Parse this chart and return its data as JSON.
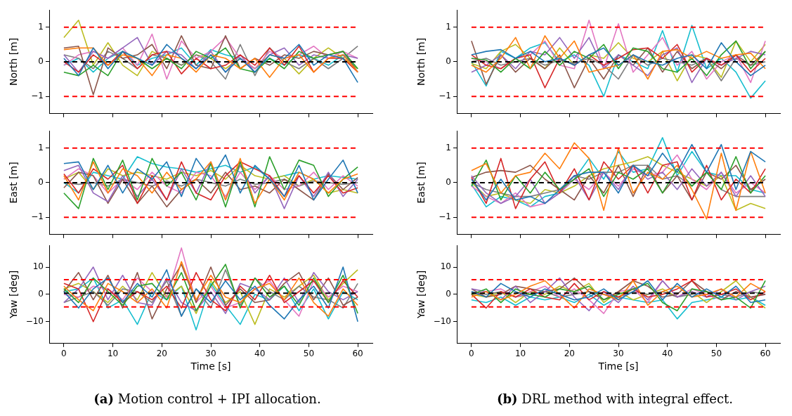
{
  "chart_data": [
    {
      "type": "line",
      "ylabel": "North [m]",
      "tick_labels": "y",
      "x": [
        0,
        3,
        6,
        9,
        12,
        15,
        18,
        21,
        24,
        27,
        30,
        33,
        36,
        39,
        42,
        45,
        48,
        51,
        54,
        57,
        60
      ],
      "xlim": [
        -3,
        63
      ],
      "xticks": [
        0,
        10,
        20,
        30,
        40,
        50,
        60
      ],
      "ylim": [
        -1.5,
        1.5
      ],
      "yticks": [
        -1,
        0,
        1
      ],
      "ref_lines": [
        {
          "axis": "y",
          "value": 1,
          "color": "#ff0000",
          "line_style": "dashed"
        },
        {
          "axis": "y",
          "value": -1,
          "color": "#ff0000",
          "line_style": "dashed"
        },
        {
          "axis": "y",
          "value": 0,
          "color": "#000000",
          "line_style": "dashed"
        }
      ],
      "series": [
        {
          "color": "#1f77b4",
          "values": [
            0.1,
            -0.4,
            0.4,
            -0.2,
            0.3,
            0.1,
            -0.1,
            0.5,
            0.1,
            -0.2,
            0.2,
            -0.3,
            0.1,
            -0.3,
            0.2,
            0.1,
            0.5,
            -0.1,
            0.2,
            0.1,
            -0.6
          ]
        },
        {
          "color": "#ff7f0e",
          "values": [
            0.35,
            0.4,
            0.4,
            -0.1,
            0.2,
            0.1,
            -0.4,
            0.2,
            0.1,
            -0.3,
            0.2,
            0.1,
            -0.2,
            0.1,
            -0.45,
            0.1,
            0.2,
            -0.3,
            0.1,
            0.2,
            -0.3
          ]
        },
        {
          "color": "#2ca02c",
          "values": [
            -0.3,
            -0.4,
            -0.1,
            -0.4,
            0.3,
            0.1,
            -0.2,
            0.1,
            -0.2,
            0.3,
            0.1,
            0.4,
            -0.2,
            -0.3,
            0.1,
            -0.2,
            0.3,
            0.1,
            0.2,
            0.3,
            -0.2
          ]
        },
        {
          "color": "#d62728",
          "values": [
            0,
            -0.3,
            0.2,
            -0.1,
            0.3,
            -0.2,
            0.2,
            0.3,
            -0.35,
            0.1,
            -0.2,
            -0.1,
            0.2,
            -0.1,
            0.4,
            -0.1,
            0.45,
            -0.3,
            0.1,
            0.1,
            -0.3
          ]
        },
        {
          "color": "#9467bd",
          "values": [
            0.2,
            -0.3,
            0.3,
            0.1,
            0.4,
            0.7,
            -0.1,
            0.3,
            0.2,
            -0.2,
            0.3,
            -0.3,
            0.2,
            -0.3,
            0.2,
            0.4,
            -0.1,
            0.2,
            0.1,
            0.2,
            0.1
          ]
        },
        {
          "color": "#8c564b",
          "values": [
            0.4,
            0.45,
            -0.95,
            0.4,
            0.1,
            0.2,
            0.5,
            -0.2,
            0.75,
            -0.1,
            -0.2,
            0.75,
            -0.2,
            0.1,
            -0.1,
            0.2,
            0.1,
            0.3,
            0.2,
            0.3,
            -0.3
          ]
        },
        {
          "color": "#e377c2",
          "values": [
            -0.1,
            0.2,
            0.3,
            0.1,
            0.4,
            -0.1,
            0.8,
            -0.5,
            0.6,
            0.1,
            0.3,
            0.7,
            0.1,
            -0.2,
            0.3,
            0.1,
            0.2,
            0.45,
            0.1,
            0.3,
            0.1
          ]
        },
        {
          "color": "#7f7f7f",
          "values": [
            0.2,
            0.1,
            -0.2,
            0.3,
            0.1,
            -0.2,
            0.2,
            0.1,
            -0.1,
            0.2,
            0,
            -0.5,
            0.5,
            -0.4,
            0.4,
            0,
            -0.2,
            0.1,
            -0.2,
            0.1,
            0.45
          ]
        },
        {
          "color": "#bcbd22",
          "values": [
            0.7,
            1.2,
            -0.1,
            0.55,
            -0.1,
            -0.4,
            0.3,
            0.1,
            -0.1,
            0.2,
            0.1,
            -0.2,
            0.1,
            -0.2,
            0.2,
            0.1,
            -0.35,
            0.1,
            0.4,
            0.1,
            -0.2
          ]
        },
        {
          "color": "#17becf",
          "values": [
            -0.1,
            0.1,
            -0.3,
            0.1,
            0.3,
            -0.1,
            0.1,
            0.2,
            0.4,
            -0.1,
            0.35,
            0.2,
            0.1,
            -0.2,
            0.1,
            -0.1,
            0.2,
            0.1,
            -0.1,
            0.2,
            -0.2
          ]
        }
      ]
    },
    {
      "type": "line",
      "ylabel": "North [m]",
      "tick_labels": "y",
      "x": [
        0,
        3,
        6,
        9,
        12,
        15,
        18,
        21,
        24,
        27,
        30,
        33,
        36,
        39,
        42,
        45,
        48,
        51,
        54,
        57,
        60
      ],
      "xlim": [
        -3,
        63
      ],
      "xticks": [
        0,
        10,
        20,
        30,
        40,
        50,
        60
      ],
      "ylim": [
        -1.5,
        1.5
      ],
      "yticks": [
        -1,
        0,
        1
      ],
      "ref_lines": [
        {
          "axis": "y",
          "value": 1,
          "color": "#ff0000",
          "line_style": "dashed"
        },
        {
          "axis": "y",
          "value": -1,
          "color": "#ff0000",
          "line_style": "dashed"
        },
        {
          "axis": "y",
          "value": 0,
          "color": "#000000",
          "line_style": "dashed"
        }
      ],
      "series": [
        {
          "color": "#1f77b4",
          "values": [
            0.2,
            0.3,
            0.35,
            0.1,
            0.3,
            0,
            0.1,
            -0.1,
            0.2,
            0.4,
            -0.1,
            0.2,
            0,
            -0.1,
            0.1,
            0.2,
            -0.2,
            0.55,
            0,
            -0.4,
            -0.1
          ]
        },
        {
          "color": "#ff7f0e",
          "values": [
            -0.1,
            -0.3,
            0.1,
            0.7,
            -0.2,
            0.75,
            0.1,
            0.6,
            -0.3,
            -0.2,
            -0.1,
            0.2,
            -0.5,
            0.3,
            0.35,
            0.1,
            0.3,
            0.1,
            0.2,
            0.25,
            -0.2
          ]
        },
        {
          "color": "#2ca02c",
          "values": [
            0.1,
            0.05,
            -0.3,
            0.1,
            -0.2,
            0.3,
            -0.1,
            0.3,
            0.1,
            0.5,
            -0.2,
            0.4,
            0.3,
            -0.2,
            -0.3,
            0.1,
            -0.4,
            0.2,
            0.6,
            -0.2,
            0.3
          ]
        },
        {
          "color": "#d62728",
          "values": [
            0.2,
            -0.1,
            -0.2,
            0.1,
            0.2,
            -0.75,
            0.1,
            -0.1,
            0.2,
            -0.1,
            0.1,
            0.35,
            0.4,
            0.1,
            0.5,
            -0.3,
            0.1,
            -0.1,
            0.2,
            -0.3,
            0.1
          ]
        },
        {
          "color": "#9467bd",
          "values": [
            -0.3,
            -0.1,
            0.2,
            -0.2,
            0.3,
            0.2,
            0.7,
            0.1,
            0.7,
            -0.2,
            0.2,
            -0.1,
            -0.4,
            0.2,
            0.4,
            -0.6,
            0.1,
            -0.1,
            0.1,
            0.3,
            0.2
          ]
        },
        {
          "color": "#8c564b",
          "values": [
            0.6,
            -0.65,
            0.2,
            -0.3,
            0.1,
            -0.2,
            0.2,
            -0.75,
            0.1,
            -0.5,
            0.2,
            -0.1,
            0.4,
            -0.3,
            0.3,
            -0.2,
            0.1,
            -0.2,
            0.2,
            -0.1,
            0.3
          ]
        },
        {
          "color": "#e377c2",
          "values": [
            0.1,
            0,
            -0.2,
            0.1,
            0.2,
            0.6,
            -0.1,
            -0.2,
            1.2,
            -0.2,
            1.1,
            -0.3,
            0.2,
            0.7,
            -0.1,
            0.3,
            -0.5,
            0,
            0.2,
            -0.6,
            0.6
          ]
        },
        {
          "color": "#7f7f7f",
          "values": [
            0,
            0.1,
            -0.1,
            0,
            0.1,
            -0.1,
            0.05,
            -0.05,
            0.1,
            -0.1,
            -0.5,
            0.2,
            -0.1,
            0.1,
            0,
            -0.1,
            0.1,
            -0.55,
            0.1,
            -0.1,
            0
          ]
        },
        {
          "color": "#bcbd22",
          "values": [
            -0.05,
            -0.2,
            0.3,
            0.5,
            0.1,
            -0.2,
            0.4,
            -0.1,
            0.2,
            0.1,
            0.55,
            0.1,
            0,
            0.3,
            -0.55,
            0.2,
            0.1,
            -0.45,
            0.6,
            0,
            0.5
          ]
        },
        {
          "color": "#17becf",
          "values": [
            0,
            -0.7,
            0.3,
            0.1,
            0.4,
            0.55,
            0,
            0.2,
            -0.1,
            -1,
            0.2,
            0,
            -0.2,
            0.9,
            -0.3,
            1.05,
            -0.2,
            0.1,
            -0.3,
            -1.05,
            -0.55
          ]
        }
      ]
    },
    {
      "type": "line",
      "ylabel": "East [m]",
      "tick_labels": "y",
      "x": [
        0,
        3,
        6,
        9,
        12,
        15,
        18,
        21,
        24,
        27,
        30,
        33,
        36,
        39,
        42,
        45,
        48,
        51,
        54,
        57,
        60
      ],
      "xlim": [
        -3,
        63
      ],
      "xticks": [
        0,
        10,
        20,
        30,
        40,
        50,
        60
      ],
      "ylim": [
        -1.5,
        1.5
      ],
      "yticks": [
        -1,
        0,
        1
      ],
      "ref_lines": [
        {
          "axis": "y",
          "value": 1,
          "color": "#ff0000",
          "line_style": "dashed"
        },
        {
          "axis": "y",
          "value": -1,
          "color": "#ff0000",
          "line_style": "dashed"
        },
        {
          "axis": "y",
          "value": 0,
          "color": "#000000",
          "line_style": "dashed"
        }
      ],
      "series": [
        {
          "color": "#1f77b4",
          "values": [
            0.55,
            0.6,
            -0.2,
            0.5,
            -0.3,
            0.4,
            0.1,
            0.6,
            -0.4,
            0.7,
            0.1,
            0.8,
            -0.3,
            0.5,
            0.1,
            -0.4,
            0.5,
            -0.5,
            0.1,
            0.65,
            -0.3
          ]
        },
        {
          "color": "#ff7f0e",
          "values": [
            0.2,
            -0.5,
            0.6,
            -0.3,
            0.4,
            0.2,
            -0.3,
            0.3,
            -0.2,
            0.1,
            0.6,
            -0.5,
            0.7,
            -0.6,
            0.1,
            -0.5,
            0.3,
            0.1,
            -0.3,
            0.1,
            0.25
          ]
        },
        {
          "color": "#2ca02c",
          "values": [
            -0.3,
            -0.75,
            0.7,
            -0.2,
            0.65,
            -0.5,
            0.7,
            -0.1,
            0.3,
            -0.5,
            0.55,
            -0.7,
            0.6,
            -0.7,
            0.75,
            -0.2,
            0.65,
            0.5,
            -0.4,
            0.1,
            0.45
          ]
        },
        {
          "color": "#d62728",
          "values": [
            0.25,
            -0.3,
            0.4,
            0.1,
            0.5,
            -0.6,
            0.2,
            -0.5,
            0.6,
            -0.3,
            -0.5,
            0.2,
            0.6,
            0.4,
            0.2,
            -0.4,
            0.2,
            -0.3,
            0.2,
            -0.3,
            -0.15
          ]
        },
        {
          "color": "#9467bd",
          "values": [
            0.35,
            0.5,
            -0.3,
            -0.55,
            0.2,
            -0.4,
            0.1,
            -0.5,
            0.4,
            -0.3,
            0.6,
            -0.5,
            0.5,
            -0.3,
            0.2,
            -0.75,
            0.2,
            -0.4,
            0.3,
            -0.4,
            0.1
          ]
        },
        {
          "color": "#8c564b",
          "values": [
            -0.15,
            0.3,
            0.2,
            -0.6,
            0.1,
            -0.6,
            -0.1,
            -0.7,
            -0.2,
            0.1,
            -0.3,
            0.3,
            -0.2,
            -0.1,
            -0.3,
            0.1,
            -0.2,
            -0.5,
            0.25,
            -0.2,
            0.15
          ]
        },
        {
          "color": "#e377c2",
          "values": [
            0.1,
            0.4,
            0.2,
            -0.3,
            0.1,
            -0.2,
            0.3,
            -0.1,
            -0.3,
            0.3,
            0.2,
            -0.4,
            0.3,
            -0.2,
            0.2,
            -0.2,
            -0.1,
            0.3,
            -0.2,
            0.2,
            -0.1
          ]
        },
        {
          "color": "#7f7f7f",
          "values": [
            0,
            -0.05,
            0,
            -0.1,
            0.1,
            0,
            -0.1,
            0.05,
            -0.1,
            0.1,
            0,
            -0.1,
            0.1,
            -0.05,
            0,
            0.1,
            -0.1,
            0.05,
            0,
            -0.05,
            0
          ]
        },
        {
          "color": "#bcbd22",
          "values": [
            0.1,
            0.3,
            -0.2,
            0.4,
            0.2,
            0.3,
            0.2,
            0.1,
            0.3,
            0.2,
            0.35,
            0.1,
            0.5,
            0.2,
            0.1,
            0.2,
            -0.1,
            0.1,
            -0.3,
            -0.2,
            -0.3
          ]
        },
        {
          "color": "#17becf",
          "values": [
            0,
            -0.3,
            0.3,
            0.2,
            0.1,
            0.75,
            0.55,
            0.45,
            0.4,
            0.3,
            0.4,
            0.5,
            0.3,
            0.45,
            0.1,
            0.2,
            0.3,
            0.1,
            0.2,
            0.15,
            0.1
          ]
        }
      ]
    },
    {
      "type": "line",
      "ylabel": "East [m]",
      "tick_labels": "y",
      "x": [
        0,
        3,
        6,
        9,
        12,
        15,
        18,
        21,
        24,
        27,
        30,
        33,
        36,
        39,
        42,
        45,
        48,
        51,
        54,
        57,
        60
      ],
      "xlim": [
        -3,
        63
      ],
      "xticks": [
        0,
        10,
        20,
        30,
        40,
        50,
        60
      ],
      "ylim": [
        -1.5,
        1.5
      ],
      "yticks": [
        -1,
        0,
        1
      ],
      "ref_lines": [
        {
          "axis": "y",
          "value": 1,
          "color": "#ff0000",
          "line_style": "dashed"
        },
        {
          "axis": "y",
          "value": -1,
          "color": "#ff0000",
          "line_style": "dashed"
        },
        {
          "axis": "y",
          "value": 0,
          "color": "#000000",
          "line_style": "dashed"
        }
      ],
      "series": [
        {
          "color": "#1f77b4",
          "values": [
            0.1,
            -0.5,
            0.1,
            -0.5,
            -0.4,
            -0.6,
            -0.2,
            0.2,
            0.3,
            0.3,
            -0.3,
            0.5,
            0.2,
            0.85,
            0.3,
            1.1,
            0.3,
            1.1,
            -0.2,
            0.9,
            0.6
          ]
        },
        {
          "color": "#ff7f0e",
          "values": [
            0.35,
            0.55,
            -0.3,
            0.2,
            0.3,
            0.85,
            0.4,
            1.15,
            0.7,
            -0.8,
            1,
            -0.3,
            0.3,
            0.1,
            0.5,
            -0.2,
            -1.05,
            0.85,
            -0.8,
            0.9,
            -0.3
          ]
        },
        {
          "color": "#2ca02c",
          "values": [
            -0.1,
            0.65,
            -0.5,
            0.2,
            -0.3,
            0.3,
            -0.2,
            0.1,
            0.4,
            -0.4,
            0.3,
            0.1,
            0.4,
            -0.3,
            0.4,
            -0.1,
            0.3,
            -0.2,
            0.75,
            -0.3,
            0.2
          ]
        },
        {
          "color": "#d62728",
          "values": [
            0.15,
            -0.6,
            0.7,
            -0.75,
            0.1,
            0.6,
            -0.3,
            0.4,
            -0.5,
            0.6,
            0.1,
            0.5,
            -0.3,
            0.5,
            0.6,
            -0.5,
            0.5,
            -0.5,
            0.1,
            -0.3,
            0.4
          ]
        },
        {
          "color": "#9467bd",
          "values": [
            0.2,
            -0.3,
            -0.6,
            -0.4,
            0.1,
            -0.6,
            -0.3,
            0.2,
            -0.5,
            0.3,
            -0.2,
            0.5,
            0.1,
            0.3,
            -0.2,
            0.4,
            -0.1,
            0.3,
            -0.4,
            0.2,
            -0.4
          ]
        },
        {
          "color": "#8c564b",
          "values": [
            0.15,
            0.3,
            0.35,
            0.3,
            0.5,
            0.1,
            -0.2,
            -0.5,
            0.2,
            -0.3,
            0.5,
            -0.4,
            0.5,
            -0.3,
            0.2,
            -0.5,
            0.3,
            0.1,
            0.5,
            -0.2,
            0.1
          ]
        },
        {
          "color": "#e377c2",
          "values": [
            -0.1,
            -0.4,
            -0.6,
            -0.3,
            -0.7,
            -0.6,
            -0.3,
            0.1,
            -0.2,
            0.3,
            -0.1,
            0.4,
            0.2,
            0.3,
            0.8,
            0.1,
            -0.2,
            0.3,
            -0.3,
            0,
            -0.3
          ]
        },
        {
          "color": "#7f7f7f",
          "values": [
            0,
            -0.2,
            -0.3,
            -0.4,
            -0.4,
            -0.3,
            -0.2,
            0.2,
            0.1,
            0.3,
            0.3,
            0.5,
            0.5,
            0.1,
            0.2,
            -0.1,
            0.3,
            -0.2,
            -0.4,
            -0.4,
            -0.4
          ]
        },
        {
          "color": "#bcbd22",
          "values": [
            0,
            -0.4,
            -0.3,
            -0.5,
            -0.6,
            -0.2,
            -0.3,
            -0.1,
            0.2,
            0.4,
            0.5,
            0.6,
            0.75,
            0.5,
            0.3,
            0.1,
            -0.1,
            0.2,
            -0.8,
            -0.6,
            -0.75
          ]
        },
        {
          "color": "#17becf",
          "values": [
            -0.05,
            -0.7,
            -0.4,
            -0.5,
            -0.7,
            -0.4,
            -0.3,
            0.1,
            0.7,
            0.1,
            0.9,
            0.3,
            0.4,
            1.3,
            0.2,
            0.9,
            0.3,
            0.2,
            0.2,
            -0.2,
            -0.3
          ]
        }
      ]
    },
    {
      "type": "line",
      "ylabel": "Yaw [deg]",
      "xlabel": "Time [s]",
      "annotations": [
        "(a) Motion control + IPI allocation."
      ],
      "x": [
        0,
        3,
        6,
        9,
        12,
        15,
        18,
        21,
        24,
        27,
        30,
        33,
        36,
        39,
        42,
        45,
        48,
        51,
        54,
        57,
        60
      ],
      "xlim": [
        -3,
        63
      ],
      "xticks": [
        0,
        10,
        20,
        30,
        40,
        50,
        60
      ],
      "ylim": [
        -18,
        18
      ],
      "yticks": [
        -10,
        0,
        10
      ],
      "ref_lines": [
        {
          "axis": "y",
          "value": 5.4,
          "color": "#ff0000",
          "line_style": "dashed"
        },
        {
          "axis": "y",
          "value": -4.6,
          "color": "#ff0000",
          "line_style": "dashed"
        },
        {
          "axis": "y",
          "value": 0.4,
          "color": "#000000",
          "line_style": "dashed"
        }
      ],
      "series": [
        {
          "color": "#1f77b4",
          "values": [
            1,
            -5,
            2,
            6,
            -3,
            4,
            -1,
            9,
            -8,
            2,
            -3,
            5,
            -2,
            3,
            -4,
            -9,
            -2,
            3,
            -5,
            10,
            -10
          ]
        },
        {
          "color": "#ff7f0e",
          "values": [
            3,
            -2,
            -6,
            4,
            1,
            -3,
            2,
            -5,
            12,
            -2,
            7,
            -1,
            -3,
            2,
            4,
            -2,
            6,
            -3,
            -8,
            2,
            -4
          ]
        },
        {
          "color": "#2ca02c",
          "values": [
            2,
            -3,
            6,
            1,
            -4,
            3,
            4,
            -2,
            8,
            -6,
            3,
            11,
            -5,
            6,
            -1,
            3,
            -4,
            6,
            -3,
            7,
            -7
          ]
        },
        {
          "color": "#d62728",
          "values": [
            4,
            2,
            -10,
            2,
            -3,
            1,
            -2,
            3,
            -5,
            8,
            -2,
            -6,
            3,
            -2,
            7,
            -3,
            1,
            5,
            -3,
            5,
            -1
          ]
        },
        {
          "color": "#9467bd",
          "values": [
            -3,
            2,
            10,
            -2,
            7,
            -3,
            -4,
            6,
            -3,
            -6,
            1,
            -7,
            4,
            2,
            -2,
            6,
            -3,
            8,
            1,
            -2,
            1
          ]
        },
        {
          "color": "#8c564b",
          "values": [
            1,
            8,
            -2,
            7,
            -5,
            8,
            -9,
            2,
            11,
            -3,
            10,
            -4,
            2,
            -3,
            -2,
            4,
            8,
            -2,
            6,
            -4,
            -1
          ]
        },
        {
          "color": "#e377c2",
          "values": [
            0,
            -1,
            3,
            2,
            -2,
            6,
            1,
            -1,
            17,
            -3,
            3,
            -5,
            -3,
            2,
            5,
            -2,
            -8,
            5,
            -1,
            3,
            1
          ]
        },
        {
          "color": "#7f7f7f",
          "values": [
            -3,
            -1,
            1,
            -4,
            2,
            1,
            -3,
            5,
            -8,
            2,
            -5,
            9,
            -4,
            6,
            1,
            -2,
            3,
            -1,
            -2,
            -5,
            4
          ]
        },
        {
          "color": "#bcbd22",
          "values": [
            2,
            4,
            1,
            -3,
            3,
            -2,
            8,
            -1,
            3,
            -7,
            5,
            -3,
            1,
            -11,
            2,
            -1,
            3,
            7,
            -2,
            4,
            9
          ]
        },
        {
          "color": "#17becf",
          "values": [
            1,
            2,
            6,
            -5,
            -2,
            -11,
            1,
            -2,
            3,
            -13,
            4,
            -4,
            -11,
            0,
            -2,
            3,
            -6,
            2,
            -9,
            1,
            -2
          ]
        }
      ]
    },
    {
      "type": "line",
      "ylabel": "Yaw [deg]",
      "xlabel": "Time [s]",
      "annotations": [
        "(b) DRL method with integral effect."
      ],
      "x": [
        0,
        3,
        6,
        9,
        12,
        15,
        18,
        21,
        24,
        27,
        30,
        33,
        36,
        39,
        42,
        45,
        48,
        51,
        54,
        57,
        60
      ],
      "xlim": [
        -3,
        63
      ],
      "xticks": [
        0,
        10,
        20,
        30,
        40,
        50,
        60
      ],
      "ylim": [
        -18,
        18
      ],
      "yticks": [
        -10,
        0,
        10
      ],
      "ref_lines": [
        {
          "axis": "y",
          "value": 5.4,
          "color": "#ff0000",
          "line_style": "dashed"
        },
        {
          "axis": "y",
          "value": -4.6,
          "color": "#ff0000",
          "line_style": "dashed"
        },
        {
          "axis": "y",
          "value": 0.4,
          "color": "#000000",
          "line_style": "dashed"
        }
      ],
      "series": [
        {
          "color": "#1f77b4",
          "values": [
            1,
            -1,
            4,
            1,
            -1,
            2,
            0,
            -2,
            -1,
            2,
            -2,
            1,
            5,
            -2,
            4,
            -1,
            2,
            -1,
            3,
            -3,
            -2
          ]
        },
        {
          "color": "#ff7f0e",
          "values": [
            -1,
            1,
            -2,
            0,
            3,
            5,
            0,
            -5,
            2,
            0,
            -2,
            5,
            -4,
            1,
            3,
            -1,
            0,
            2,
            -1,
            4,
            1
          ]
        },
        {
          "color": "#2ca02c",
          "values": [
            0,
            2,
            -3,
            2,
            0,
            -1,
            2,
            1,
            3,
            -2,
            0,
            2,
            4,
            -3,
            -6,
            2,
            1,
            -2,
            -1,
            -5,
            5
          ]
        },
        {
          "color": "#d62728",
          "values": [
            0,
            -5,
            1,
            -1,
            2,
            -1,
            -2,
            4,
            -2,
            1,
            -1,
            2,
            -1,
            0,
            2,
            5,
            -1,
            0,
            2,
            -2,
            1
          ]
        },
        {
          "color": "#9467bd",
          "values": [
            2,
            1,
            -2,
            3,
            -3,
            1,
            6,
            -1,
            -6,
            1,
            -3,
            3,
            -2,
            5,
            -1,
            1,
            -1,
            2,
            -2,
            1,
            3
          ]
        },
        {
          "color": "#8c564b",
          "values": [
            2,
            -1,
            0,
            3,
            2,
            1,
            2,
            6,
            1,
            -2,
            1,
            5,
            3,
            -1,
            0,
            5,
            1,
            -2,
            1,
            -1,
            0
          ]
        },
        {
          "color": "#e377c2",
          "values": [
            0,
            1,
            2,
            -1,
            1,
            3,
            -1,
            2,
            -2,
            -7,
            1,
            2,
            -3,
            5,
            -1,
            2,
            0,
            -2,
            1,
            -1,
            0
          ]
        },
        {
          "color": "#7f7f7f",
          "values": [
            1,
            0,
            1,
            -1,
            0,
            1,
            -1,
            0,
            1,
            0,
            -1,
            1,
            0,
            1,
            -1,
            0,
            1,
            0,
            -1,
            1,
            0
          ]
        },
        {
          "color": "#bcbd22",
          "values": [
            0,
            -1,
            1,
            -3,
            1,
            0,
            3,
            1,
            4,
            -3,
            1,
            -2,
            0,
            2,
            -1,
            1,
            -3,
            1,
            5,
            -1,
            -5
          ]
        },
        {
          "color": "#17becf",
          "values": [
            -2,
            -3,
            -1,
            -4,
            -1,
            -2,
            -1,
            -3,
            0,
            -4,
            -1,
            -2,
            -3,
            -2,
            -9,
            -3,
            -2,
            -1,
            -2,
            -1,
            -4
          ]
        }
      ]
    }
  ]
}
